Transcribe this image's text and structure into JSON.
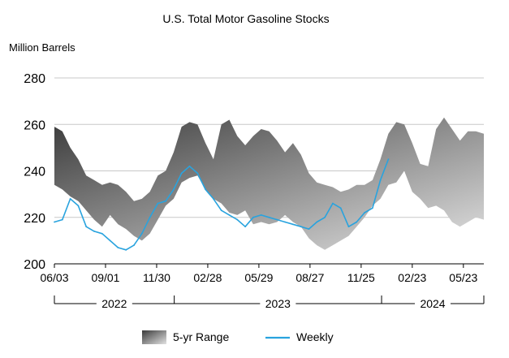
{
  "chart_data": {
    "type": "area",
    "title": "U.S. Total Motor Gasoline Stocks",
    "ylabel": "Million Barrels",
    "xlabel": "",
    "ylim": [
      200,
      280
    ],
    "yticks": [
      200,
      220,
      240,
      260,
      280
    ],
    "grid": true,
    "legend_placement": "bottom",
    "x_start": "2022-06-03",
    "x_end": "2024-06-28",
    "xtick_labels": [
      {
        "date": "2022-06-03",
        "label": "06/03"
      },
      {
        "date": "2022-09-01",
        "label": "09/01"
      },
      {
        "date": "2022-11-30",
        "label": "11/30"
      },
      {
        "date": "2023-02-28",
        "label": "02/28"
      },
      {
        "date": "2023-05-29",
        "label": "05/29"
      },
      {
        "date": "2023-08-27",
        "label": "08/27"
      },
      {
        "date": "2023-11-25",
        "label": "11/25"
      },
      {
        "date": "2024-02-23",
        "label": "02/23"
      },
      {
        "date": "2024-05-23",
        "label": "05/23"
      }
    ],
    "year_groups": [
      {
        "label": "2022",
        "start": "2022-06-03",
        "end": "2022-12-31"
      },
      {
        "label": "2023",
        "start": "2022-12-31",
        "end": "2023-12-31"
      },
      {
        "label": "2024",
        "start": "2023-12-31",
        "end": "2024-06-28"
      }
    ],
    "series": [
      {
        "name": "5-yr Range",
        "color_dark": "#3a3a3a",
        "color_light": "#e2e2e2",
        "x": [
          "2022-06-03",
          "2022-06-17",
          "2022-07-01",
          "2022-07-15",
          "2022-07-29",
          "2022-08-12",
          "2022-08-26",
          "2022-09-09",
          "2022-09-23",
          "2022-10-07",
          "2022-10-21",
          "2022-11-04",
          "2022-11-18",
          "2022-12-02",
          "2022-12-16",
          "2022-12-30",
          "2023-01-13",
          "2023-01-27",
          "2023-02-10",
          "2023-02-24",
          "2023-03-10",
          "2023-03-24",
          "2023-04-07",
          "2023-04-21",
          "2023-05-05",
          "2023-05-19",
          "2023-06-02",
          "2023-06-16",
          "2023-06-30",
          "2023-07-14",
          "2023-07-28",
          "2023-08-11",
          "2023-08-25",
          "2023-09-08",
          "2023-09-22",
          "2023-10-06",
          "2023-10-20",
          "2023-11-03",
          "2023-11-17",
          "2023-12-01",
          "2023-12-15",
          "2023-12-29",
          "2024-01-12",
          "2024-01-26",
          "2024-02-09",
          "2024-02-23",
          "2024-03-08",
          "2024-03-22",
          "2024-04-05",
          "2024-04-19",
          "2024-05-03",
          "2024-05-17",
          "2024-05-31",
          "2024-06-14",
          "2024-06-28"
        ],
        "high": [
          259,
          257,
          250,
          245,
          238,
          236,
          234,
          235,
          234,
          231,
          227,
          228,
          231,
          238,
          240,
          248,
          259,
          261,
          260,
          252,
          245,
          260,
          262,
          255,
          251,
          255,
          258,
          257,
          253,
          248,
          252,
          247,
          239,
          235,
          234,
          233,
          231,
          232,
          234,
          234,
          236,
          245,
          256,
          261,
          260,
          252,
          243,
          242,
          258,
          263,
          258,
          253,
          257,
          257,
          256
        ],
        "low": [
          234,
          232,
          229,
          227,
          223,
          219,
          216,
          221,
          217,
          215,
          212,
          210,
          213,
          219,
          225,
          228,
          235,
          237,
          238,
          232,
          228,
          226,
          222,
          221,
          223,
          217,
          218,
          217,
          218,
          221,
          218,
          216,
          211,
          208,
          206,
          208,
          210,
          212,
          216,
          220,
          225,
          228,
          234,
          235,
          240,
          231,
          228,
          224,
          225,
          223,
          218,
          216,
          218,
          220,
          219
        ]
      },
      {
        "name": "Weekly",
        "color": "#29a3de",
        "x": [
          "2022-06-03",
          "2022-06-17",
          "2022-07-01",
          "2022-07-15",
          "2022-07-29",
          "2022-08-12",
          "2022-08-26",
          "2022-09-09",
          "2022-09-23",
          "2022-10-07",
          "2022-10-21",
          "2022-11-04",
          "2022-11-18",
          "2022-12-02",
          "2022-12-16",
          "2022-12-30",
          "2023-01-13",
          "2023-01-27",
          "2023-02-10",
          "2023-02-24",
          "2023-03-10",
          "2023-03-24",
          "2023-04-07",
          "2023-04-21",
          "2023-05-05",
          "2023-05-19",
          "2023-06-02",
          "2023-06-16",
          "2023-06-30",
          "2023-07-14",
          "2023-07-28",
          "2023-08-11",
          "2023-08-25",
          "2023-09-08",
          "2023-09-22",
          "2023-10-06",
          "2023-10-20",
          "2023-11-03",
          "2023-11-17",
          "2023-12-01",
          "2023-12-15",
          "2023-12-29",
          "2024-01-12"
        ],
        "values": [
          218,
          219,
          228,
          225,
          216,
          214,
          213,
          210,
          207,
          206,
          208,
          213,
          220,
          226,
          227,
          232,
          239,
          242,
          239,
          232,
          228,
          223,
          221,
          219,
          216,
          220,
          221,
          220,
          219,
          218,
          217,
          216,
          215,
          218,
          220,
          226,
          224,
          216,
          218,
          222,
          224,
          236,
          245
        ]
      }
    ]
  }
}
